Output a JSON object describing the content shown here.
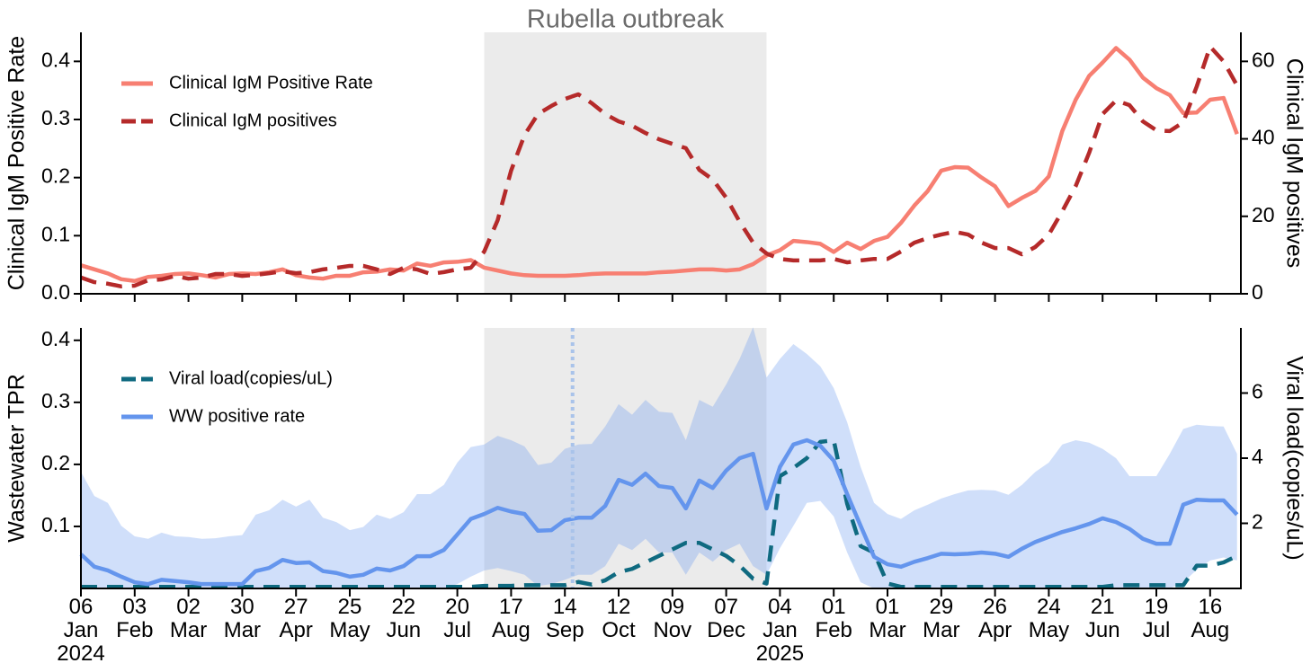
{
  "chart_data": [
    {
      "type": "line",
      "annotation": "Rubella outbreak",
      "shade": {
        "start": "2024-08-03",
        "end": "2024-12-28",
        "color": "#ebebeb"
      },
      "ylabel": "Clinical IgM Positive Rate",
      "y2label": "Clinical IgM positives",
      "legend": "upper left",
      "xlim": [
        "2024-01-06",
        "2025-09-01"
      ],
      "xticks": [
        "2024-01-06",
        "2024-02-03",
        "2024-03-02",
        "2024-03-30",
        "2024-04-27",
        "2024-05-25",
        "2024-06-22",
        "2024-07-20",
        "2024-08-17",
        "2024-09-14",
        "2024-10-12",
        "2024-11-09",
        "2024-12-07",
        "2025-01-04",
        "2025-02-01",
        "2025-03-01",
        "2025-03-29",
        "2025-04-26",
        "2025-05-24",
        "2025-06-21",
        "2025-07-19",
        "2025-08-16"
      ],
      "ylim": [
        0,
        0.45
      ],
      "yticks": [
        {
          "value": 0,
          "label": "0.0"
        },
        0.1,
        0.2,
        0.3,
        0.4
      ],
      "y2lim": [
        0,
        67.5
      ],
      "y2ticks": [
        0,
        20,
        40,
        60
      ],
      "x": [
        "2024-01-06",
        "2024-01-13",
        "2024-01-20",
        "2024-01-27",
        "2024-02-03",
        "2024-02-10",
        "2024-02-17",
        "2024-02-24",
        "2024-03-02",
        "2024-03-09",
        "2024-03-16",
        "2024-03-23",
        "2024-03-30",
        "2024-04-06",
        "2024-04-13",
        "2024-04-20",
        "2024-04-27",
        "2024-05-04",
        "2024-05-11",
        "2024-05-18",
        "2024-05-25",
        "2024-06-01",
        "2024-06-08",
        "2024-06-15",
        "2024-06-22",
        "2024-06-29",
        "2024-07-06",
        "2024-07-13",
        "2024-07-20",
        "2024-07-27",
        "2024-08-03",
        "2024-08-10",
        "2024-08-17",
        "2024-08-24",
        "2024-08-31",
        "2024-09-07",
        "2024-09-14",
        "2024-09-21",
        "2024-09-28",
        "2024-10-05",
        "2024-10-12",
        "2024-10-19",
        "2024-10-26",
        "2024-11-02",
        "2024-11-09",
        "2024-11-16",
        "2024-11-23",
        "2024-11-30",
        "2024-12-07",
        "2024-12-14",
        "2024-12-21",
        "2024-12-28",
        "2025-01-04",
        "2025-01-11",
        "2025-01-18",
        "2025-01-25",
        "2025-02-01",
        "2025-02-08",
        "2025-02-15",
        "2025-02-22",
        "2025-03-01",
        "2025-03-08",
        "2025-03-15",
        "2025-03-22",
        "2025-03-29",
        "2025-04-05",
        "2025-04-12",
        "2025-04-19",
        "2025-04-26",
        "2025-05-03",
        "2025-05-10",
        "2025-05-17",
        "2025-05-24",
        "2025-05-31",
        "2025-06-07",
        "2025-06-14",
        "2025-06-21",
        "2025-06-28",
        "2025-07-05",
        "2025-07-12",
        "2025-07-19",
        "2025-07-26",
        "2025-08-02",
        "2025-08-09",
        "2025-08-16",
        "2025-08-23",
        "2025-08-30"
      ],
      "series": [
        {
          "name": "Clinical IgM Positive Rate",
          "color": "#f77f72",
          "linestyle": "solid",
          "axis": "y",
          "values": [
            0.049,
            0.042,
            0.035,
            0.025,
            0.022,
            0.029,
            0.031,
            0.034,
            0.035,
            0.032,
            0.028,
            0.034,
            0.035,
            0.034,
            0.037,
            0.042,
            0.032,
            0.028,
            0.026,
            0.031,
            0.031,
            0.037,
            0.038,
            0.042,
            0.04,
            0.052,
            0.048,
            0.054,
            0.055,
            0.058,
            0.045,
            0.04,
            0.035,
            0.032,
            0.031,
            0.031,
            0.031,
            0.032,
            0.034,
            0.035,
            0.035,
            0.035,
            0.035,
            0.037,
            0.038,
            0.04,
            0.042,
            0.042,
            0.04,
            0.042,
            0.051,
            0.066,
            0.075,
            0.091,
            0.089,
            0.086,
            0.072,
            0.088,
            0.077,
            0.091,
            0.098,
            0.122,
            0.152,
            0.177,
            0.212,
            0.218,
            0.217,
            0.2,
            0.185,
            0.151,
            0.165,
            0.177,
            0.202,
            0.28,
            0.334,
            0.375,
            0.398,
            0.423,
            0.403,
            0.372,
            0.354,
            0.342,
            0.311,
            0.312,
            0.334,
            0.337,
            0.275
          ]
        },
        {
          "name": "Clinical IgM positives",
          "color": "#b52a2a",
          "linestyle": "dashed",
          "axis": "y2",
          "values": [
            4.2,
            3,
            2.6,
            1.9,
            2.1,
            3.5,
            3.7,
            4.6,
            3.9,
            4.2,
            5.1,
            5.1,
            4.6,
            4.9,
            5.3,
            5.8,
            5.3,
            5.6,
            6.3,
            6.7,
            7.2,
            7.2,
            6.3,
            5.1,
            6.7,
            6.3,
            5.1,
            5.6,
            6.3,
            6.7,
            10.9,
            19,
            31.8,
            41,
            46.4,
            48.5,
            50.3,
            51.5,
            49.2,
            46.4,
            44.5,
            43.4,
            41.5,
            39.9,
            38.7,
            37.6,
            32,
            29.5,
            24.8,
            18.6,
            13.2,
            10.4,
            9,
            8.6,
            8.6,
            8.6,
            9,
            8.1,
            8.6,
            9,
            9,
            10.9,
            13.2,
            14.4,
            15.3,
            16,
            15.3,
            13.2,
            11.8,
            11.8,
            10.2,
            12.1,
            15.3,
            21.3,
            27.8,
            36.4,
            46.4,
            49.9,
            48.7,
            44.5,
            42.2,
            42,
            44.3,
            53.5,
            63.8,
            60,
            53.8
          ]
        }
      ]
    },
    {
      "type": "line",
      "shade": {
        "start": "2024-08-03",
        "end": "2024-12-28",
        "color": "#ebebeb"
      },
      "vline": {
        "x": "2024-09-18",
        "color": "#a9c3ea"
      },
      "ylabel": "Wastewater TPR",
      "y2label": "Viral load(copies/uL)",
      "legend": "upper left",
      "xlim": [
        "2024-01-06",
        "2025-09-01"
      ],
      "xticks": [
        {
          "value": "2024-01-06",
          "label": "06\nJan\n2024"
        },
        {
          "value": "2024-02-03",
          "label": "03\nFeb"
        },
        {
          "value": "2024-03-02",
          "label": "02\nMar"
        },
        {
          "value": "2024-03-30",
          "label": "30\nMar"
        },
        {
          "value": "2024-04-27",
          "label": "27\nApr"
        },
        {
          "value": "2024-05-25",
          "label": "25\nMay"
        },
        {
          "value": "2024-06-22",
          "label": "22\nJun"
        },
        {
          "value": "2024-07-20",
          "label": "20\nJul"
        },
        {
          "value": "2024-08-17",
          "label": "17\nAug"
        },
        {
          "value": "2024-09-14",
          "label": "14\nSep"
        },
        {
          "value": "2024-10-12",
          "label": "12\nOct"
        },
        {
          "value": "2024-11-09",
          "label": "09\nNov"
        },
        {
          "value": "2024-12-07",
          "label": "07\nDec"
        },
        {
          "value": "2025-01-04",
          "label": "04\nJan\n2025"
        },
        {
          "value": "2025-02-01",
          "label": "01\nFeb"
        },
        {
          "value": "2025-03-01",
          "label": "01\nMar"
        },
        {
          "value": "2025-03-29",
          "label": "29\nMar"
        },
        {
          "value": "2025-04-26",
          "label": "26\nApr"
        },
        {
          "value": "2025-05-24",
          "label": "24\nMay"
        },
        {
          "value": "2025-06-21",
          "label": "21\nJun"
        },
        {
          "value": "2025-07-19",
          "label": "19\nJul"
        },
        {
          "value": "2025-08-16",
          "label": "16\nAug"
        }
      ],
      "ylim": [
        0,
        0.42
      ],
      "yticks": [
        0.1,
        0.2,
        0.3,
        0.4
      ],
      "y2lim": [
        0,
        8
      ],
      "y2ticks": [
        2,
        4,
        6
      ],
      "x": [
        "2024-01-06",
        "2024-01-13",
        "2024-01-20",
        "2024-01-27",
        "2024-02-03",
        "2024-02-10",
        "2024-02-17",
        "2024-02-24",
        "2024-03-02",
        "2024-03-09",
        "2024-03-16",
        "2024-03-23",
        "2024-03-30",
        "2024-04-06",
        "2024-04-13",
        "2024-04-20",
        "2024-04-27",
        "2024-05-04",
        "2024-05-11",
        "2024-05-18",
        "2024-05-25",
        "2024-06-01",
        "2024-06-08",
        "2024-06-15",
        "2024-06-22",
        "2024-06-29",
        "2024-07-06",
        "2024-07-13",
        "2024-07-20",
        "2024-07-27",
        "2024-08-03",
        "2024-08-10",
        "2024-08-17",
        "2024-08-24",
        "2024-08-31",
        "2024-09-07",
        "2024-09-14",
        "2024-09-21",
        "2024-09-28",
        "2024-10-05",
        "2024-10-12",
        "2024-10-19",
        "2024-10-26",
        "2024-11-02",
        "2024-11-09",
        "2024-11-16",
        "2024-11-23",
        "2024-11-30",
        "2024-12-07",
        "2024-12-14",
        "2024-12-21",
        "2024-12-28",
        "2025-01-04",
        "2025-01-11",
        "2025-01-18",
        "2025-01-25",
        "2025-02-01",
        "2025-02-08",
        "2025-02-15",
        "2025-02-22",
        "2025-03-01",
        "2025-03-08",
        "2025-03-15",
        "2025-03-22",
        "2025-03-29",
        "2025-04-05",
        "2025-04-12",
        "2025-04-19",
        "2025-04-26",
        "2025-05-03",
        "2025-05-10",
        "2025-05-17",
        "2025-05-24",
        "2025-05-31",
        "2025-06-07",
        "2025-06-14",
        "2025-06-21",
        "2025-06-28",
        "2025-07-05",
        "2025-07-12",
        "2025-07-19",
        "2025-07-26",
        "2025-08-02",
        "2025-08-09",
        "2025-08-16",
        "2025-08-23",
        "2025-08-30"
      ],
      "series": [
        {
          "name": "Viral load(copies/uL)",
          "color": "#0f6a80",
          "linestyle": "dashed",
          "axis": "y2",
          "values": [
            0.05,
            0.05,
            0.05,
            0.05,
            0.05,
            0.05,
            0.05,
            0.05,
            0.05,
            0.05,
            0.05,
            0.05,
            0.05,
            0.05,
            0.05,
            0.05,
            0.05,
            0.05,
            0.05,
            0.05,
            0.05,
            0.05,
            0.05,
            0.05,
            0.05,
            0.05,
            0.05,
            0.05,
            0.05,
            0.05,
            0.08,
            0.08,
            0.08,
            0.1,
            0.1,
            0.1,
            0.1,
            0.2,
            0.12,
            0.25,
            0.5,
            0.6,
            0.8,
            1.0,
            1.2,
            1.4,
            1.4,
            1.2,
            1.0,
            0.7,
            0.3,
            0.15,
            3.45,
            3.7,
            4.0,
            4.5,
            4.55,
            2.6,
            1.3,
            1.1,
            0.15,
            0.05,
            0.05,
            0.05,
            0.05,
            0.05,
            0.05,
            0.05,
            0.05,
            0.05,
            0.05,
            0.05,
            0.05,
            0.05,
            0.05,
            0.05,
            0.05,
            0.1,
            0.1,
            0.1,
            0.1,
            0.1,
            0.1,
            0.7,
            0.7,
            0.8,
            1.0
          ]
        },
        {
          "name": "WW positive rate",
          "color": "#6495ed",
          "linestyle": "solid",
          "axis": "y",
          "values": [
            0.055,
            0.035,
            0.029,
            0.019,
            0.01,
            0.007,
            0.014,
            0.012,
            0.01,
            0.007,
            0.007,
            0.007,
            0.007,
            0.028,
            0.033,
            0.046,
            0.041,
            0.042,
            0.028,
            0.025,
            0.019,
            0.022,
            0.032,
            0.029,
            0.036,
            0.052,
            0.052,
            0.062,
            0.087,
            0.112,
            0.12,
            0.13,
            0.124,
            0.12,
            0.093,
            0.094,
            0.11,
            0.114,
            0.114,
            0.133,
            0.175,
            0.167,
            0.185,
            0.165,
            0.162,
            0.129,
            0.174,
            0.162,
            0.19,
            0.21,
            0.217,
            0.129,
            0.196,
            0.232,
            0.239,
            0.23,
            0.206,
            0.152,
            0.101,
            0.051,
            0.039,
            0.035,
            0.043,
            0.049,
            0.056,
            0.055,
            0.056,
            0.058,
            0.056,
            0.051,
            0.064,
            0.075,
            0.083,
            0.091,
            0.097,
            0.104,
            0.113,
            0.107,
            0.096,
            0.08,
            0.072,
            0.072,
            0.135,
            0.143,
            0.142,
            0.142,
            0.119
          ],
          "lower": [
            0,
            0,
            0,
            0,
            0,
            0,
            0,
            0,
            0,
            0,
            0,
            0,
            0,
            0,
            0,
            0,
            0,
            0,
            0,
            0,
            0,
            0,
            0,
            0,
            0,
            0,
            0,
            0,
            0.007,
            0.019,
            0.029,
            0.033,
            0.028,
            0.022,
            0.004,
            0.007,
            0.014,
            0.022,
            0.022,
            0.036,
            0.072,
            0.062,
            0.08,
            0.058,
            0.058,
            0.022,
            0.058,
            0.043,
            0.062,
            0.072,
            0.036,
            0.022,
            0.065,
            0.101,
            0.138,
            0.141,
            0.116,
            0.058,
            0.01,
            0,
            0,
            0,
            0,
            0,
            0,
            0,
            0,
            0,
            0,
            0,
            0,
            0,
            0,
            0,
            0,
            0,
            0,
            0,
            0,
            0,
            0,
            0,
            0.01,
            0.03,
            0.045,
            0.05,
            0.045
          ],
          "upper": [
            0.188,
            0.149,
            0.138,
            0.101,
            0.084,
            0.08,
            0.09,
            0.084,
            0.083,
            0.08,
            0.081,
            0.084,
            0.086,
            0.119,
            0.126,
            0.143,
            0.132,
            0.143,
            0.114,
            0.107,
            0.094,
            0.099,
            0.119,
            0.112,
            0.123,
            0.152,
            0.152,
            0.167,
            0.203,
            0.228,
            0.232,
            0.246,
            0.239,
            0.229,
            0.199,
            0.203,
            0.225,
            0.232,
            0.233,
            0.261,
            0.297,
            0.28,
            0.304,
            0.285,
            0.283,
            0.239,
            0.304,
            0.293,
            0.329,
            0.37,
            0.421,
            0.34,
            0.37,
            0.394,
            0.378,
            0.358,
            0.323,
            0.268,
            0.196,
            0.138,
            0.12,
            0.112,
            0.126,
            0.135,
            0.145,
            0.152,
            0.158,
            0.159,
            0.158,
            0.151,
            0.167,
            0.188,
            0.203,
            0.232,
            0.239,
            0.235,
            0.225,
            0.21,
            0.181,
            0.181,
            0.181,
            0.217,
            0.257,
            0.264,
            0.262,
            0.261,
            0.217
          ],
          "band_opacity": 0.3
        }
      ]
    }
  ]
}
